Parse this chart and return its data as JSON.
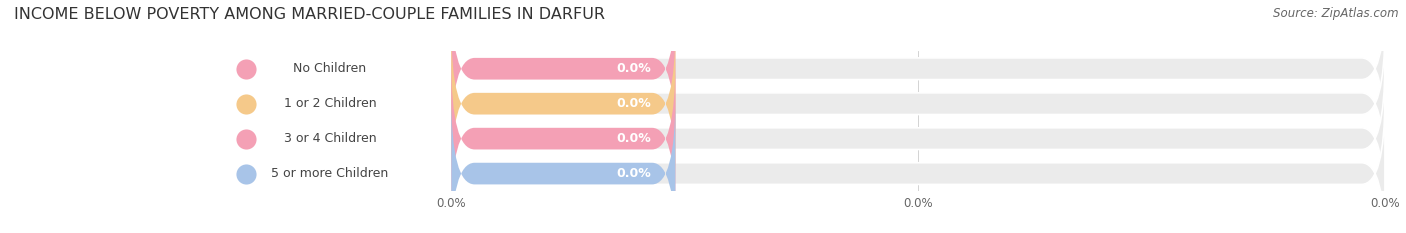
{
  "title": "INCOME BELOW POVERTY AMONG MARRIED-COUPLE FAMILIES IN DARFUR",
  "source": "Source: ZipAtlas.com",
  "categories": [
    "No Children",
    "1 or 2 Children",
    "3 or 4 Children",
    "5 or more Children"
  ],
  "values": [
    0.0,
    0.0,
    0.0,
    0.0
  ],
  "bar_colors": [
    "#f4a0b5",
    "#f5c98a",
    "#f4a0b5",
    "#a8c4e8"
  ],
  "label_text": [
    "0.0%",
    "0.0%",
    "0.0%",
    "0.0%"
  ],
  "x_tick_labels": [
    "0.0%",
    "0.0%",
    "0.0%"
  ],
  "background_color": "#ffffff",
  "bar_bg_color": "#ebebeb",
  "title_fontsize": 11.5,
  "source_fontsize": 8.5,
  "bar_label_fontsize": 9,
  "category_fontsize": 9,
  "tick_fontsize": 8.5
}
